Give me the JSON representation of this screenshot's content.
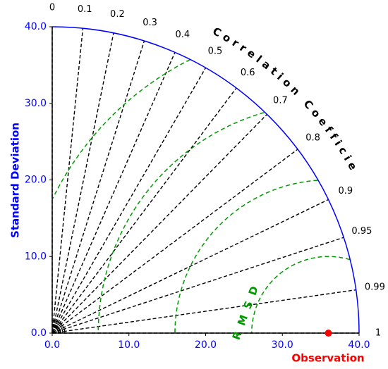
{
  "chart_data": {
    "type": "taylor",
    "ylabel": "Standard Deviation",
    "correlation_label": "Correlation Coefficient",
    "rmsd_label": "RMSD",
    "observation": {
      "label": "Observation",
      "std": 36,
      "color": "#ff0000"
    },
    "xlim": [
      0,
      40
    ],
    "xticks": [
      {
        "value": 0,
        "label": "0.0"
      },
      {
        "value": 10,
        "label": "10.0"
      },
      {
        "value": 20,
        "label": "20.0"
      },
      {
        "value": 30,
        "label": "30.0"
      },
      {
        "value": 40,
        "label": "40.0"
      }
    ],
    "yticks": [
      {
        "value": 0,
        "label": "0.0"
      },
      {
        "value": 10,
        "label": "10.0"
      },
      {
        "value": 20,
        "label": "20.0"
      },
      {
        "value": 30,
        "label": "30.0"
      },
      {
        "value": 40,
        "label": "40.0"
      }
    ],
    "correlation_ticks": [
      0,
      0.1,
      0.2,
      0.3,
      0.4,
      0.5,
      0.6,
      0.7,
      0.8,
      0.9,
      0.95,
      0.99,
      1
    ],
    "rmsd_contours": [
      10,
      20,
      30,
      40
    ],
    "axis_color": "#0000ff",
    "correlation_line_color": "#000000",
    "rmsd_color": "#009900"
  }
}
